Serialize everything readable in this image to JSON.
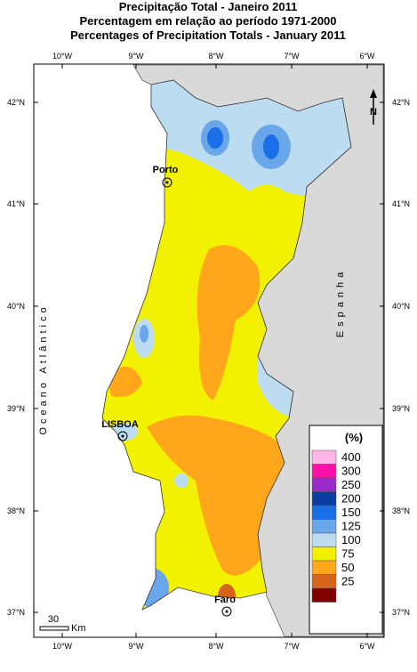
{
  "title": {
    "line1": "Precipitação Total - Janeiro 2011",
    "line2": "Percentagem em relação ao período 1971-2000",
    "line3": "Percentages of Precipitation Totals - January 2011"
  },
  "longitudes": [
    "10°W",
    "9°W",
    "8°W",
    "7°W",
    "6°W"
  ],
  "latitudes": [
    "42°N",
    "41°N",
    "40°N",
    "39°N",
    "38°N",
    "37°N"
  ],
  "places": [
    "Porto",
    "LISBOA",
    "Faro"
  ],
  "ocean": "Oceano Atlântico",
  "country": "Espanha",
  "north": "N",
  "scale": {
    "value": "30",
    "unit": "Km"
  },
  "legend": {
    "title": "(%)",
    "labels": [
      400,
      300,
      250,
      200,
      150,
      125,
      100,
      75,
      50,
      25
    ],
    "colors": [
      "#ffb6e6",
      "#ff10a8",
      "#9a2ccc",
      "#0a3ea0",
      "#1a6ee8",
      "#6aa6ea",
      "#bcdcf2",
      "#f2f200",
      "#ffa61a",
      "#d8641a",
      "#800000"
    ]
  }
}
